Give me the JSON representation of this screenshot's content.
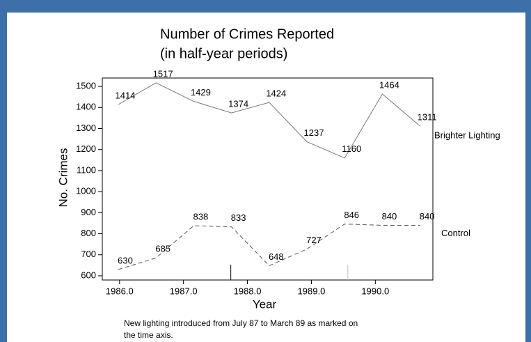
{
  "chart_data": {
    "type": "line",
    "title": "Number of Crimes Reported",
    "subtitle": "(in half-year periods)",
    "x_label": "Year",
    "y_label": "No. Crimes",
    "note": "New lighting introduced from July 87 to March 89 as marked on",
    "note_line2": "the time axis.",
    "x": [
      1985.98,
      1986.57,
      1987.16,
      1987.75,
      1988.34,
      1988.93,
      1989.52,
      1990.11,
      1990.7
    ],
    "series": [
      {
        "name": "Brighter Lighting",
        "color": "#777777",
        "dashed": false,
        "values": [
          1414,
          1517,
          1429,
          1374,
          1424,
          1237,
          1160,
          1464,
          1311
        ]
      },
      {
        "name": "Control",
        "color": "#555555",
        "dashed": true,
        "values": [
          630,
          685,
          838,
          833,
          648,
          727,
          846,
          840,
          840
        ]
      }
    ],
    "intervention_marks": [
      1987.74,
      1989.57
    ],
    "xlim": [
      1985.73,
      1990.9
    ],
    "ylim": [
      580,
      1540
    ],
    "xticks": [
      {
        "value": 1986,
        "label": "1986.0"
      },
      {
        "value": 1987,
        "label": "1987.0"
      },
      {
        "value": 1988,
        "label": "1988.0"
      },
      {
        "value": 1989,
        "label": "1989.0"
      },
      {
        "value": 1990,
        "label": "1990.0"
      }
    ],
    "yticks": [
      600,
      700,
      800,
      900,
      1000,
      1100,
      1200,
      1300,
      1400,
      1500
    ]
  }
}
